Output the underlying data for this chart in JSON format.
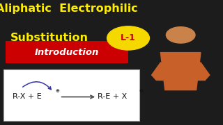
{
  "bg_color": "#1c1c1c",
  "title_line1": "Aliphatic  Electrophilic",
  "title_line2": "Substitution",
  "title_color": "#ffee00",
  "title_fontsize": 11.5,
  "badge_text": "L-1",
  "badge_bg": "#f5d800",
  "badge_text_color": "#cc0000",
  "intro_text": "Introduction",
  "intro_bg": "#cc0000",
  "intro_text_color": "#ffffff",
  "intro_fontsize": 9.5,
  "eq_fontsize": 8.0,
  "eq_bg": "#ffffff",
  "person_bg": "#2a1a0a",
  "arrow_color": "#3333aa",
  "eq_arrow_color": "#555555"
}
